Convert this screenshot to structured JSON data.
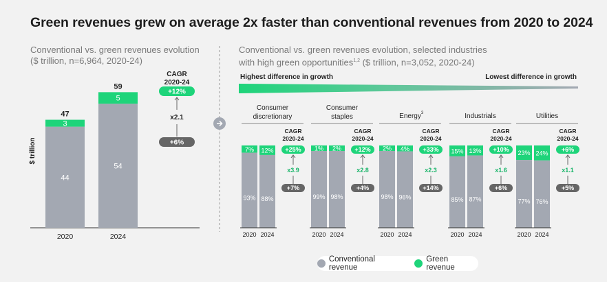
{
  "title": "Green revenues grew on average 2x faster than conventional revenues from 2020 to 2024",
  "left_panel": {
    "subtitle_line1": "Conventional vs. green revenues evolution",
    "subtitle_line2": "($ trillion, n=6,964, 2020-24)"
  },
  "right_panel": {
    "subtitle_line1": "Conventional vs. green revenues evolution, selected industries",
    "subtitle_line2a": "with high green opportunities",
    "subtitle_sup": "1,2",
    "subtitle_line2b": " ($ trillion, n=3,052, 2020-24)",
    "gradient_left_label": "Highest difference in growth",
    "gradient_right_label": "Lowest difference in growth"
  },
  "legend": {
    "conventional_label": "Conventional revenue",
    "green_label": "Green revenue"
  },
  "colors": {
    "conventional": "#a3a8b2",
    "green": "#1ed47a",
    "dark_pill": "#666666",
    "background": "#f2f2f2"
  },
  "chart_data": [
    {
      "type": "bar",
      "stacked": true,
      "title": "Conventional vs. green revenues evolution",
      "ylabel": "$ trillion",
      "categories": [
        "2020",
        "2024"
      ],
      "series": [
        {
          "name": "Conventional revenue",
          "values": [
            44,
            54
          ]
        },
        {
          "name": "Green revenue",
          "values": [
            3,
            5
          ]
        }
      ],
      "totals": [
        "47",
        "59"
      ],
      "cagr_label": "CAGR\n2020-24",
      "cagr_title": "CAGR",
      "cagr_period": "2020-24",
      "cagr_green": "+12%",
      "cagr_conventional": "+6%",
      "multiplier": "x2.1"
    },
    {
      "type": "bar",
      "stacked": true,
      "percent": true,
      "title": "Conventional vs. green revenues evolution, selected industries with high green opportunities",
      "categories": [
        "2020",
        "2024"
      ],
      "cagr_title": "CAGR",
      "cagr_period": "2020-24",
      "industries": [
        {
          "name_line1": "Consumer",
          "name_line2": "discretionary",
          "conventional": [
            "93%",
            "88%"
          ],
          "green": [
            "7%",
            "12%"
          ],
          "conventional_values": [
            93,
            88
          ],
          "green_values": [
            7,
            12
          ],
          "cagr_green": "+25%",
          "cagr_conventional": "+7%",
          "multiplier": "x3.9"
        },
        {
          "name_line1": "Consumer",
          "name_line2": "staples",
          "conventional": [
            "99%",
            "98%"
          ],
          "green": [
            "1%",
            "2%"
          ],
          "conventional_values": [
            99,
            98
          ],
          "green_values": [
            1,
            2
          ],
          "cagr_green": "+12%",
          "cagr_conventional": "+4%",
          "multiplier": "x2.8"
        },
        {
          "name_line1": "",
          "name_line2": "Energy",
          "name_sup": "3",
          "conventional": [
            "98%",
            "96%"
          ],
          "green": [
            "2%",
            "4%"
          ],
          "conventional_values": [
            98,
            96
          ],
          "green_values": [
            2,
            4
          ],
          "cagr_green": "+33%",
          "cagr_conventional": "+14%",
          "multiplier": "x2.3"
        },
        {
          "name_line1": "",
          "name_line2": "Industrials",
          "conventional": [
            "85%",
            "87%"
          ],
          "green": [
            "15%",
            "13%"
          ],
          "conventional_values": [
            85,
            87
          ],
          "green_values": [
            15,
            13
          ],
          "cagr_green": "+10%",
          "cagr_conventional": "+6%",
          "multiplier": "x1.6"
        },
        {
          "name_line1": "",
          "name_line2": "Utilities",
          "conventional": [
            "77%",
            "76%"
          ],
          "green": [
            "23%",
            "24%"
          ],
          "conventional_values": [
            77,
            76
          ],
          "green_values": [
            23,
            24
          ],
          "cagr_green": "+6%",
          "cagr_conventional": "+5%",
          "multiplier": "x1.1"
        }
      ]
    }
  ]
}
